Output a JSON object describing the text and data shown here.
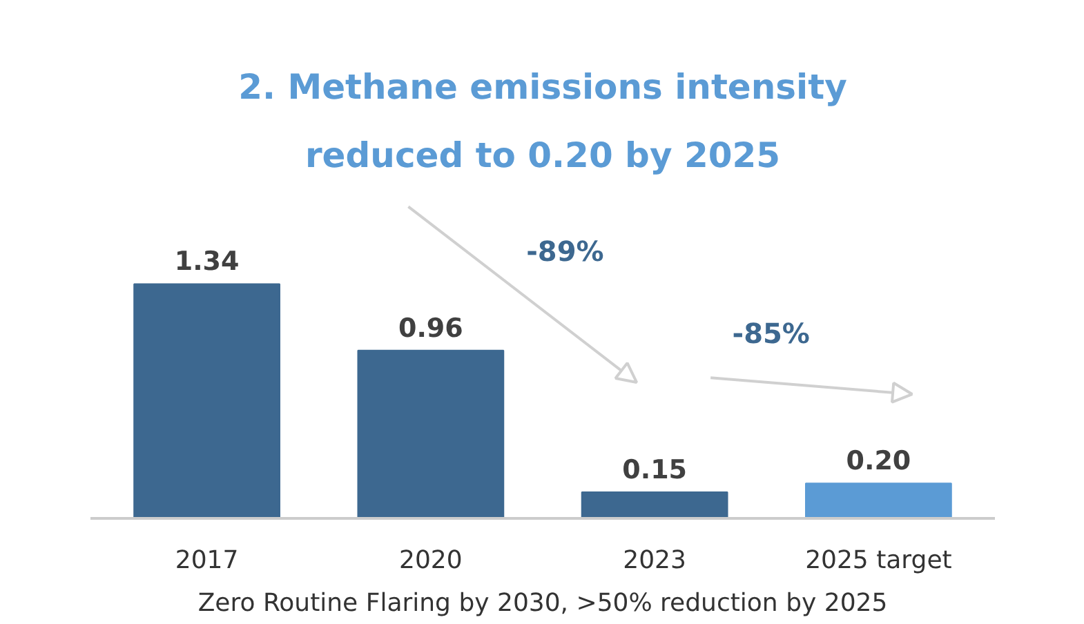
{
  "chart_data": {
    "type": "bar",
    "title": "2. Methane emissions intensity\nreduced to 0.20 by 2025",
    "categories": [
      "2017",
      "2020",
      "2023",
      "2025 target"
    ],
    "values": [
      1.34,
      0.96,
      0.15,
      0.2
    ],
    "colors": [
      "#3d6890",
      "#3d6890",
      "#3d6890",
      "#5b9bd5"
    ],
    "value_labels": [
      "1.34",
      "0.96",
      "0.15",
      "0.20"
    ],
    "annotations": [
      "-89%",
      "-85%",
      "Zero Routine Flaring by 2030, >50% reduction by 2025"
    ]
  }
}
